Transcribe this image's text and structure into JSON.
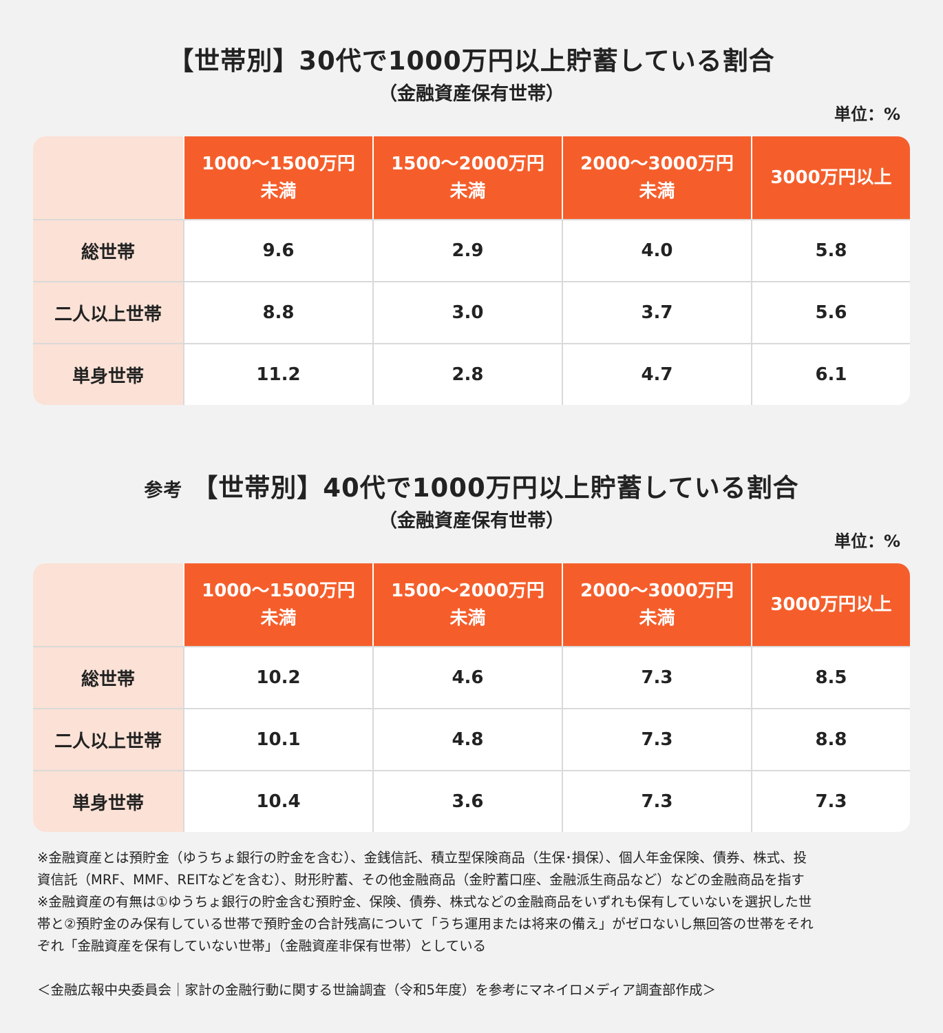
{
  "chart_data": [
    {
      "type": "table",
      "title": "【世帯別】30代で1000万円以上貯蓄している割合",
      "subtitle": "（金融資産保有世帯）",
      "unit_label": "単位：%",
      "columns": [
        {
          "line1": "1000〜1500万円",
          "line2": "未満"
        },
        {
          "line1": "1500〜2000万円",
          "line2": "未満"
        },
        {
          "line1": "2000〜3000万円",
          "line2": "未満"
        },
        {
          "line1": "3000万円以上",
          "line2": ""
        }
      ],
      "rows": [
        {
          "label": "総世帯",
          "values": [
            "9.6",
            "2.9",
            "4.0",
            "5.8"
          ]
        },
        {
          "label": "二人以上世帯",
          "values": [
            "8.8",
            "3.0",
            "3.7",
            "5.6"
          ]
        },
        {
          "label": "単身世帯",
          "values": [
            "11.2",
            "2.8",
            "4.7",
            "6.1"
          ]
        }
      ]
    },
    {
      "type": "table",
      "title_prefix": "参考",
      "title": "【世帯別】40代で1000万円以上貯蓄している割合",
      "subtitle": "（金融資産保有世帯）",
      "unit_label": "単位：%",
      "columns": [
        {
          "line1": "1000〜1500万円",
          "line2": "未満"
        },
        {
          "line1": "1500〜2000万円",
          "line2": "未満"
        },
        {
          "line1": "2000〜3000万円",
          "line2": "未満"
        },
        {
          "line1": "3000万円以上",
          "line2": ""
        }
      ],
      "rows": [
        {
          "label": "総世帯",
          "values": [
            "10.2",
            "4.6",
            "7.3",
            "8.5"
          ]
        },
        {
          "label": "二人以上世帯",
          "values": [
            "10.1",
            "4.8",
            "7.3",
            "8.8"
          ]
        },
        {
          "label": "単身世帯",
          "values": [
            "10.4",
            "3.6",
            "7.3",
            "7.3"
          ]
        }
      ]
    }
  ],
  "notes": [
    "※金融資産とは預貯金（ゆうちょ銀行の貯金を含む）、金銭信託、積立型保険商品（生保･損保）、個人年金保険、債券、株式、投",
    "資信託（MRF、MMF、REITなどを含む）、財形貯蓄、その他金融商品（金貯蓄口座、金融派生商品など）などの金融商品を指す",
    "※金融資産の有無は①ゆうちょ銀行の貯金含む預貯金、保険、債券、株式などの金融商品をいずれも保有していないを選択した世",
    "帯と②預貯金のみ保有している世帯で預貯金の合計残高について「うち運用または将来の備え」がゼロないし無回答の世帯をそれ",
    "ぞれ「金融資産を保有していない世帯」（金融資産非保有世帯）としている"
  ],
  "source": "＜金融広報中央委員会｜家計の金融行動に関する世論調査（令和5年度）を参考にマネイロメディア調査部作成＞",
  "colors": {
    "header_bg": "#f55e2b",
    "label_bg": "#fbe1d6",
    "page_bg": "#f2f2f2"
  }
}
